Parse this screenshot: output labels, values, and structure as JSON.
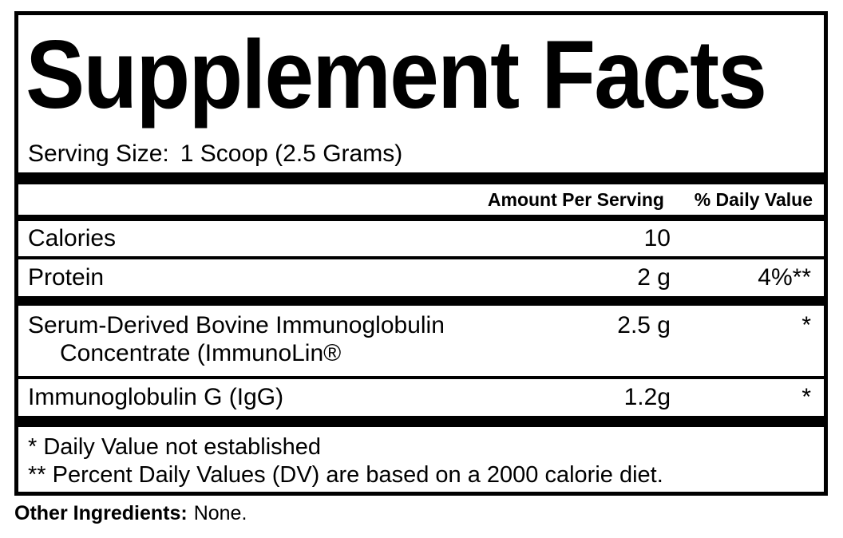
{
  "colors": {
    "text": "#000000",
    "background": "#ffffff",
    "border": "#000000"
  },
  "label": {
    "title": "Supplement Facts",
    "serving_size_label": "Serving Size:",
    "serving_size_value": "1 Scoop (2.5 Grams)",
    "columns": {
      "amount": "Amount Per Serving",
      "daily_value": "% Daily Value"
    },
    "rows": [
      {
        "name": "Calories",
        "amount": "10",
        "dv": ""
      },
      {
        "name": "Protein",
        "amount": "2 g",
        "dv": "4%**"
      },
      {
        "name": "Serum-Derived Bovine Immunoglobulin",
        "name_line2": "Concentrate (ImmunoLin®",
        "amount": "2.5 g",
        "dv": "*"
      },
      {
        "name": "Immunoglobulin G (IgG)",
        "amount": "1.2g",
        "dv": "*"
      }
    ],
    "footnotes": {
      "line1": "* Daily Value not established",
      "line2": "** Percent Daily Values (DV) are based on a 2000 calorie diet."
    },
    "other_ingredients": {
      "label": "Other Ingredients:",
      "value": "None."
    }
  }
}
